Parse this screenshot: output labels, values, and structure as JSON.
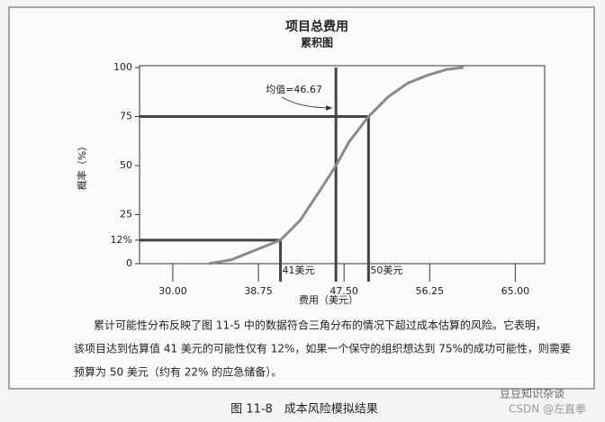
{
  "chart_data": {
    "type": "line",
    "title": "项目总费用",
    "subtitle": "累积图",
    "x_label": "费用（美元）",
    "y_label": "概率（%）",
    "x": [
      33.7,
      36,
      38,
      41,
      43,
      45,
      46.67,
      48,
      50,
      52,
      54,
      56,
      58,
      59.7
    ],
    "series": [
      {
        "color": "#8a8a8a",
        "values": [
          0,
          2,
          6,
          12,
          22,
          37,
          50,
          62,
          75,
          85,
          92,
          96,
          99,
          100
        ]
      }
    ],
    "xlim": [
      26.6,
      68
    ],
    "ylim": [
      0,
      100
    ],
    "xticks": [
      {
        "value": 30,
        "label": "30.00"
      },
      {
        "value": 38.75,
        "label": "38.75"
      },
      {
        "value": 47.5,
        "label": "47.50"
      },
      {
        "value": 56.25,
        "label": "56.25"
      },
      {
        "value": 65,
        "label": "65.00"
      }
    ],
    "yticks": [
      0,
      {
        "value": 12,
        "label": "12%"
      },
      25,
      50,
      75,
      100
    ],
    "mean": {
      "value": 46.67,
      "label": "均值=46.67"
    },
    "markers": [
      {
        "x": 41,
        "y": 12,
        "label": "41美元"
      },
      {
        "x": 50,
        "y": 75,
        "label": "50美元"
      }
    ]
  },
  "paragraph": [
    "累计可能性分布反映了图 11-5 中的数据符合三角分布的情况下超过成本估算的风险。它表明，",
    "该项目达到估算值 41 美元的可能性仅有 12%，如果一个保守的组织想达到 75%的成功可能性，则需要",
    "预算为 50 美元（约有 22% 的应急储备）。"
  ],
  "caption": "图 11-8　成本风险模拟结果",
  "watermark": [
    "豆豆知识杂谈",
    "CSDN @左直拳"
  ]
}
